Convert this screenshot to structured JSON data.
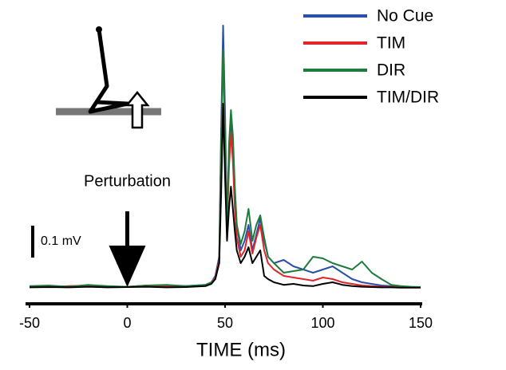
{
  "chart_data": {
    "type": "line",
    "x_label": "TIME (ms)",
    "x": [
      -50,
      -40,
      -30,
      -20,
      -10,
      0,
      10,
      20,
      30,
      40,
      43,
      45,
      47,
      48,
      49,
      50,
      51,
      52,
      53,
      54,
      55,
      56,
      58,
      60,
      62,
      64,
      66,
      68,
      70,
      72,
      75,
      80,
      85,
      90,
      95,
      100,
      105,
      110,
      115,
      120,
      125,
      130,
      135,
      140,
      145,
      150
    ],
    "xlim": [
      -50,
      150
    ],
    "xticks": [
      -50,
      0,
      50,
      100,
      150
    ],
    "ylim": [
      -0.05,
      0.85
    ],
    "legend": "top-right",
    "scale_bar": {
      "value": 0.1,
      "label": "0.1 mV"
    },
    "annotation": {
      "text": "Perturbation",
      "x": 0
    },
    "series": [
      {
        "name": "No Cue",
        "color": "#2b4fa8",
        "values": [
          0.005,
          0.008,
          0.005,
          0.01,
          0.006,
          0.005,
          0.008,
          0.01,
          0.008,
          0.012,
          0.02,
          0.04,
          0.1,
          0.5,
          0.825,
          0.55,
          0.2,
          0.42,
          0.53,
          0.45,
          0.3,
          0.2,
          0.12,
          0.15,
          0.2,
          0.12,
          0.17,
          0.22,
          0.15,
          0.1,
          0.08,
          0.09,
          0.07,
          0.06,
          0.05,
          0.06,
          0.07,
          0.05,
          0.03,
          0.02,
          0.015,
          0.01,
          0.008,
          0.006,
          0.005,
          0.005
        ]
      },
      {
        "name": "TIM",
        "color": "#e0262b",
        "values": [
          0.006,
          0.005,
          0.008,
          0.01,
          0.005,
          0.006,
          0.01,
          0.008,
          0.006,
          0.01,
          0.02,
          0.035,
          0.09,
          0.45,
          0.75,
          0.5,
          0.18,
          0.38,
          0.49,
          0.4,
          0.25,
          0.16,
          0.1,
          0.12,
          0.18,
          0.11,
          0.16,
          0.2,
          0.12,
          0.08,
          0.06,
          0.04,
          0.035,
          0.03,
          0.025,
          0.035,
          0.03,
          0.02,
          0.015,
          0.01,
          0.008,
          0.006,
          0.005,
          0.005,
          0.004,
          0.004
        ]
      },
      {
        "name": "DIR",
        "color": "#1e7b3c",
        "values": [
          0.008,
          0.01,
          0.006,
          0.012,
          0.008,
          0.006,
          0.01,
          0.012,
          0.008,
          0.012,
          0.02,
          0.03,
          0.08,
          0.45,
          0.75,
          0.48,
          0.2,
          0.45,
          0.56,
          0.48,
          0.32,
          0.2,
          0.14,
          0.18,
          0.25,
          0.15,
          0.2,
          0.23,
          0.16,
          0.1,
          0.08,
          0.05,
          0.055,
          0.06,
          0.1,
          0.095,
          0.08,
          0.07,
          0.06,
          0.085,
          0.05,
          0.03,
          0.012,
          0.008,
          0.006,
          0.005
        ]
      },
      {
        "name": "TIM/DIR",
        "color": "#000000",
        "values": [
          0.004,
          0.005,
          0.004,
          0.006,
          0.004,
          0.005,
          0.006,
          0.004,
          0.005,
          0.008,
          0.015,
          0.03,
          0.08,
          0.3,
          0.58,
          0.35,
          0.15,
          0.25,
          0.32,
          0.25,
          0.18,
          0.12,
          0.08,
          0.1,
          0.13,
          0.08,
          0.1,
          0.12,
          0.04,
          0.03,
          0.02,
          0.012,
          0.015,
          0.01,
          0.008,
          0.015,
          0.02,
          0.012,
          0.008,
          0.006,
          0.005,
          0.004,
          0.004,
          0.003,
          0.003,
          0.003
        ]
      }
    ]
  }
}
